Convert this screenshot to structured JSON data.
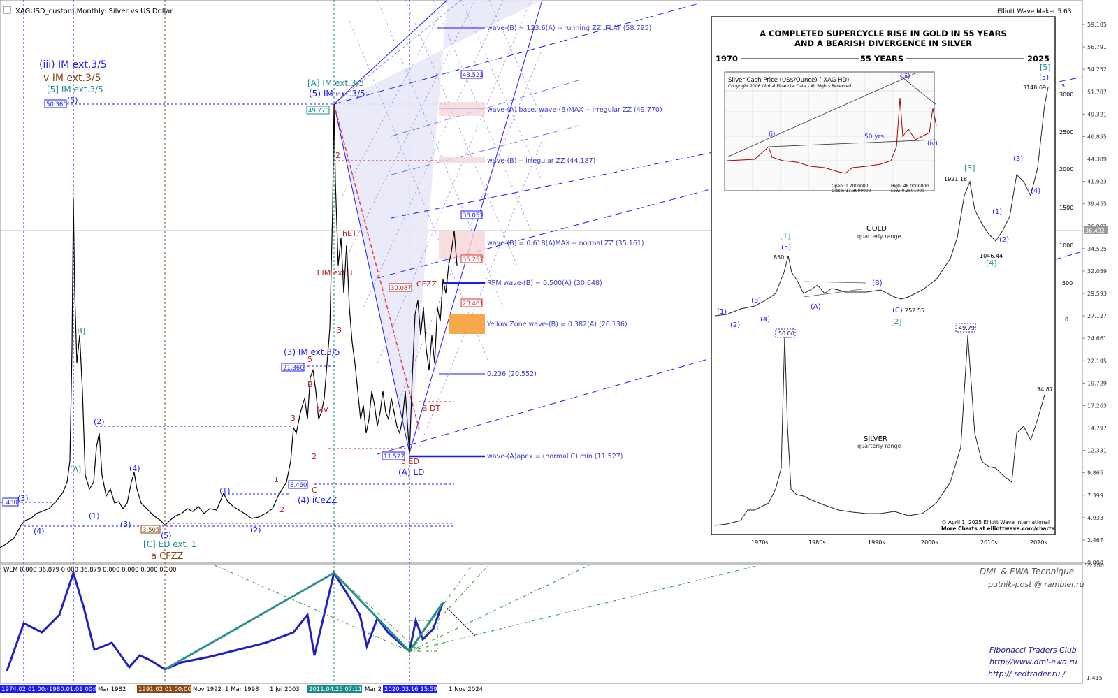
{
  "window": {
    "title": "XAGUSD_custom,Monthly:  Silver vs US Dollar",
    "indicator_label": "Elliott Wave Maker 5.63"
  },
  "price_axis": {
    "labels": [
      "59.185",
      "56.791",
      "54.252",
      "51.787",
      "49.321",
      "46.855",
      "44.389",
      "41.923",
      "39.455",
      "36.992",
      "34.525",
      "32.059",
      "29.593",
      "27.127",
      "24.661",
      "22.195",
      "19.729",
      "17.263",
      "14.797",
      "12.331",
      "9.865",
      "7.399",
      "4.933",
      "2.467",
      "0.000"
    ],
    "current_price": "36.492"
  },
  "indicator_axis": {
    "labels": [
      "55.280",
      "-1.415"
    ]
  },
  "time_axis": {
    "labels": [
      "1974.02.01 00:00",
      "1980.01.01 00:00",
      "Mar 1982",
      "1991.02.01 00:00",
      "Nov 1992",
      "1 Mar 1998",
      "1 Jul 2003",
      "2011.04.25 07:11",
      "Mar 2",
      "2020.03.16 15:59",
      "1 Nov 2024"
    ]
  },
  "wave_labels": {
    "iii_im": "(iii) IM ext.3/5",
    "v_im": "v IM ext.3/5",
    "five_im": "[5] IM ext.3/5",
    "a_im": "[A] IM ext.3/5",
    "five_paren_im": "(5) IM ext.3/5",
    "three_im": "(3) IM ext.3/5",
    "four_icezz": "(4) iCeZZ",
    "c_ed": "[C] ED ext. 1",
    "a_cfzz": "a CFZZ",
    "a_ld": "(A) LD",
    "five_ed": "5 ED",
    "b_dt": "B DT",
    "het": "hET",
    "three_im_red": "3 IM ext.3",
    "cfzz": "CFZZ",
    "mv": "MV",
    "b_bracket": "[B]",
    "a_bracket": "[A]"
  },
  "price_boxes": {
    "p50360": "50.360",
    "p49770": "49.770",
    "p21360": "21.360",
    "p8460": "8.460",
    "p11527": "11.527",
    "p3505": "3.505",
    "p1430": ".430",
    "p38052": "38.052",
    "p35257": "35.257",
    "p30087": "30.087",
    "p28461": "28.461",
    "p43523": "43.523"
  },
  "projection_labels": [
    "wave-(B) = 123.6(A) -- running ZZ, FLAT (58.795)",
    "wave-(A) base, wave-(B)MAX -- irregular ZZ (49.770)",
    "wave-(B) -- irregular ZZ (44.187)",
    "wave-(B) = 0.618(A)MAX -- normal ZZ (35.161)",
    "RPM wave-(B) = 0.500(A) (30.648)",
    "Yellow Zone wave-(B) = 0.382(A) (26.136)",
    "0.236 (20.552)",
    "wave-(A)apex = (normal C) min (11.527)"
  ],
  "inset": {
    "title_line1": "A COMPLETED SUPERCYCLE RISE IN GOLD IN 55 YEARS",
    "title_line2": "AND A BEARISH DIVERGENCE IN SILVER",
    "year_start": "1970",
    "span": "55 YEARS",
    "year_end": "2025",
    "mini_title": "Silver Cash Price (US$/Ounce) (    XAG  HD)",
    "mini_copyright": "Copyright 2006 Global Financial Data - All Rights Reserved",
    "mini_50yr": "50 yrs",
    "mini_open": "Open: 1.2000000",
    "mini_close": "Close: 11.3900000",
    "mini_high": "High: 48.0000000",
    "mini_low": "Low: 0.2501000",
    "gold_label": "GOLD",
    "gold_sub": "quarterly range",
    "silver_label": "SILVER",
    "silver_sub": "quarterly range",
    "gold_850": "850",
    "gold_252": "252.55",
    "gold_1921": "1921.18",
    "gold_1046": "1046.44",
    "gold_3148": "3148.69",
    "silver_50": "50.00",
    "silver_4979": "49.79",
    "silver_3487": "34.87",
    "right_axis": [
      "3000",
      "2500",
      "2000",
      "1500",
      "1000",
      "500",
      "0"
    ],
    "dollar": "$",
    "decades": [
      "1970s",
      "1980s",
      "1990s",
      "2000s",
      "2010s",
      "2020s"
    ],
    "copyright": "© April 1, 2025 Elliott Wave International",
    "more": "More Charts at elliottwave.com/charts",
    "g1": "(1)",
    "g2": "(2)",
    "g3": "(3)",
    "g4": "(4)",
    "g5": "(5)",
    "gA": "(A)",
    "gB": "(B)",
    "gC": "(C)",
    "gb1": "[1]",
    "gb2": "[2]",
    "gb3": "[3]",
    "gb4": "[4]",
    "gb5": "[5]",
    "mini_i": "(i)",
    "mini_iii": "(iii)",
    "mini_iv": "(iv)"
  },
  "subwindow": {
    "label": "WLM 0.000 36.879 0.000 36.879 0.000 0.000 0.000 0.000",
    "credit1": "DML & EWA Technique",
    "credit2": "putnik-post @ rambler.ru",
    "credit3": "Fibonacci    Traders    Club",
    "credit4": "http://www.dml-ewa.ru",
    "credit5": "http:// redtrader.ru /"
  },
  "colors": {
    "wave_blue": "#1a1aff",
    "wave_red": "#b22222",
    "wave_teal": "#1a8a8a",
    "wave_brown": "#8b4513",
    "zone_orange": "#f7a84a",
    "zone_pink": "#f6d6d6",
    "fan_fill": "#e6e6f8"
  }
}
